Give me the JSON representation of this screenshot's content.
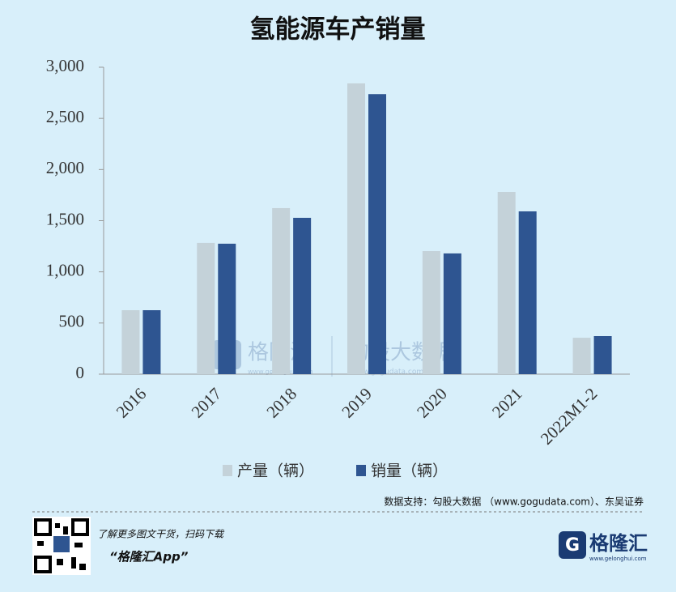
{
  "chart_data": {
    "type": "bar",
    "title": "氢能源车产销量",
    "categories": [
      "2016",
      "2017",
      "2018",
      "2019",
      "2020",
      "2021",
      "2022M1-2"
    ],
    "series": [
      {
        "name": "产量（辆）",
        "color": "#c4d2d9",
        "values": [
          625,
          1283,
          1623,
          2842,
          1203,
          1781,
          356
        ]
      },
      {
        "name": "销量（辆）",
        "color": "#2e5591",
        "values": [
          625,
          1275,
          1528,
          2737,
          1180,
          1591,
          372
        ]
      }
    ],
    "ylim": [
      0,
      3000
    ],
    "yticks": [
      0,
      500,
      {
        "value": 1000,
        "label": "1,000"
      },
      {
        "value": 1500,
        "label": "1,500"
      },
      {
        "value": 2000,
        "label": "2,000"
      },
      {
        "value": 2500,
        "label": "2,500"
      },
      {
        "value": 3000,
        "label": "3,000"
      }
    ],
    "grid": false,
    "legend": "bottom",
    "source": "数据支持：勾股大数据 （www.gogudata.com）、东吴证券"
  },
  "watermark": {
    "left": "格隆汇",
    "left_sub": "www.gelonghui.com",
    "right": "勾股大数据",
    "right_sub": "www.gogudata.com"
  },
  "footer": {
    "promo": "了解更多图文干货，扫码下载",
    "app": "“格隆汇App”",
    "logo": "格隆汇",
    "logo_sub": "www.gelonghui.com"
  }
}
